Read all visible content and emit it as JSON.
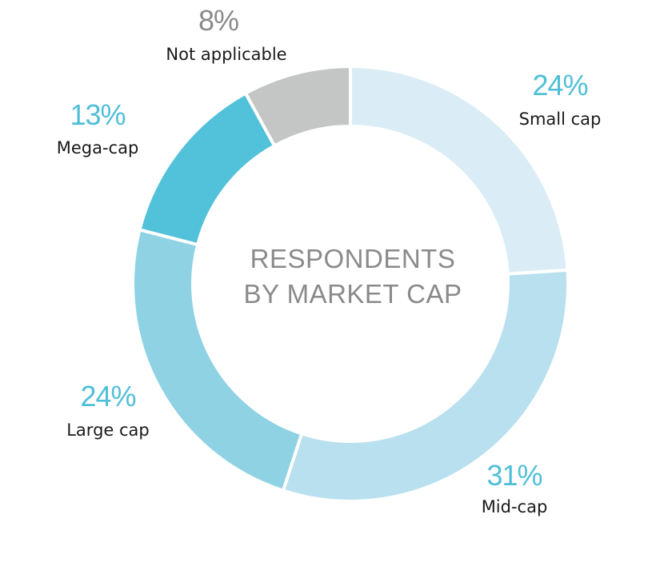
{
  "chart_data": {
    "type": "pie",
    "title": "RESPONDENTS BY MARKET CAP",
    "title_lines": [
      "RESPONDENTS",
      "BY MARKET CAP"
    ],
    "categories": [
      "Small cap",
      "Mid-cap",
      "Large cap",
      "Mega-cap",
      "Not applicable"
    ],
    "values": [
      24,
      31,
      24,
      13,
      8
    ],
    "value_labels": [
      "24%",
      "31%",
      "24%",
      "13%",
      "8%"
    ],
    "colors": [
      "#daedf6",
      "#b9e0ef",
      "#8ed2e4",
      "#52c1da",
      "#c4c6c6"
    ],
    "label_colors": [
      "#4fbfd8",
      "#4fbfd8",
      "#4fbfd8",
      "#4fbfd8",
      "#8a8a8a"
    ],
    "style": "donut"
  }
}
